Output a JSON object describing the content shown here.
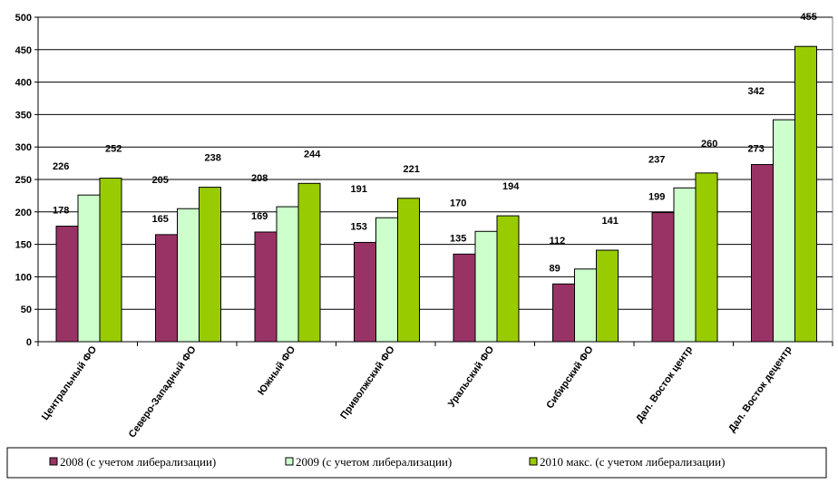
{
  "chart_data": {
    "type": "bar",
    "categories": [
      "Центральный ФО",
      "Северо-Западный ФО",
      "Южный ФО",
      "Приволжский ФО",
      "Уральский ФО",
      "Сибирский ФО",
      "Дал. Восток центр",
      "Дал. Восток децентр"
    ],
    "series": [
      {
        "name": "2008 (с учетом либерализации)",
        "color": "#993366",
        "values": [
          178,
          165,
          169,
          153,
          135,
          89,
          199,
          273
        ]
      },
      {
        "name": "2009 (с учетом либерализации)",
        "color": "#CCFFCC",
        "values": [
          226,
          205,
          208,
          191,
          170,
          112,
          237,
          342
        ]
      },
      {
        "name": "2010 макс.  (с учетом либерализации)",
        "color": "#99CC00",
        "values": [
          252,
          238,
          244,
          221,
          194,
          141,
          260,
          455
        ]
      }
    ],
    "ylim": [
      0,
      500
    ],
    "yticks": [
      0,
      50,
      100,
      150,
      200,
      250,
      300,
      350,
      400,
      450,
      500
    ],
    "grid": true,
    "legend_position": "bottom"
  }
}
